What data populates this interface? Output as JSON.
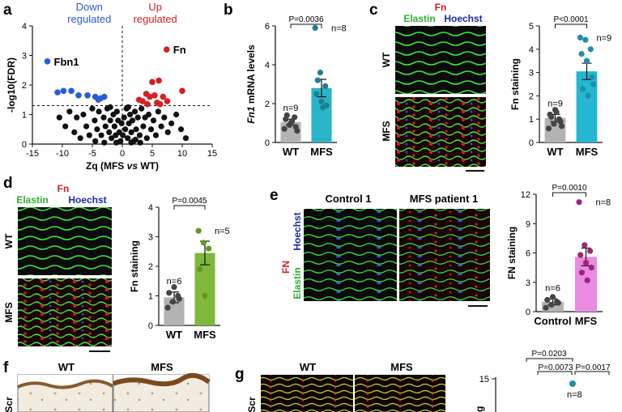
{
  "panels": {
    "a": {
      "letter": "a"
    },
    "b": {
      "letter": "b"
    },
    "c": {
      "letter": "c"
    },
    "d": {
      "letter": "d"
    },
    "e": {
      "letter": "e"
    },
    "f": {
      "letter": "f"
    },
    "g": {
      "letter": "g"
    }
  },
  "micro": {
    "c": {
      "title_fn": "Fn",
      "title_elastin": "Elastin",
      "title_hoechst": "Hoechst",
      "row1": "WT",
      "row2": "MFS"
    },
    "d": {
      "title_fn": "Fn",
      "title_elastin": "Elastin",
      "title_hoechst": "Hoechst",
      "row1": "WT",
      "row2": "MFS"
    },
    "e": {
      "col1": "Control 1",
      "col2": "MFS patient 1",
      "side_fn": "FN",
      "side_elastin": "Elastin",
      "side_hoechst": "Hoechst"
    },
    "f": {
      "col1": "WT",
      "col2": "MFS",
      "side": "Scr"
    },
    "g": {
      "col1": "WT",
      "col2": "MFS",
      "side": "Scr"
    }
  },
  "colors": {
    "down": "#2a5bd7",
    "up": "#d42020",
    "ns": "#111111",
    "wt_bar": "#b3b3b3",
    "mfs_b": "#2ab4c8",
    "mfs_c": "#23b7d1",
    "mfs_d": "#7fb83a",
    "mfs_e": "#e98be0",
    "dot_b": "#1e7f94",
    "dot_c": "#1f8fab",
    "dot_d": "#5e9a22",
    "dot_e": "#9c2482",
    "dot_wt": "#444444"
  },
  "chart_data": [
    {
      "id": "a",
      "type": "scatter",
      "title_down": "Down\nregulated",
      "title_up": "Up\nregulated",
      "xlabel": "Zq (MFS vs WT)",
      "ylabel": "-log10(FDR)",
      "xlim": [
        -15,
        15
      ],
      "ylim": [
        0,
        4
      ],
      "xticks": [
        -15,
        -10,
        -5,
        0,
        5,
        10,
        15
      ],
      "yticks": [
        0,
        1,
        2,
        3,
        4
      ],
      "threshold_y": 1.3,
      "annotations": [
        {
          "text": "Fbn1",
          "x": -12.5,
          "y": 2.8
        },
        {
          "text": "Fn",
          "x": 7.4,
          "y": 3.2
        }
      ],
      "down_points": [
        [
          -12.5,
          2.8
        ],
        [
          -10.8,
          1.75
        ],
        [
          -9.8,
          1.8
        ],
        [
          -8.5,
          1.8
        ],
        [
          -7.3,
          1.65
        ],
        [
          -5.8,
          1.65
        ],
        [
          -4.5,
          1.6
        ],
        [
          -4.0,
          1.5
        ],
        [
          -3.6,
          1.55
        ],
        [
          -3.0,
          1.6
        ]
      ],
      "up_points": [
        [
          7.4,
          3.2
        ],
        [
          10.0,
          1.8
        ],
        [
          5.0,
          2.1
        ],
        [
          6.1,
          2.15
        ],
        [
          4.0,
          1.7
        ],
        [
          4.6,
          1.6
        ],
        [
          5.4,
          1.65
        ],
        [
          6.8,
          1.6
        ],
        [
          3.4,
          1.45
        ],
        [
          4.2,
          1.35
        ],
        [
          5.8,
          1.4
        ],
        [
          6.3,
          1.35
        ],
        [
          2.8,
          1.5
        ],
        [
          7.5,
          1.45
        ]
      ],
      "ns_points": [
        [
          -10.5,
          0.9
        ],
        [
          -9.5,
          0.6
        ],
        [
          -8.8,
          1.1
        ],
        [
          -8.0,
          0.4
        ],
        [
          -7.6,
          0.9
        ],
        [
          -7.0,
          0.2
        ],
        [
          -6.5,
          1.0
        ],
        [
          -6.0,
          0.6
        ],
        [
          -5.5,
          0.3
        ],
        [
          -5.0,
          1.2
        ],
        [
          -4.6,
          0.8
        ],
        [
          -4.2,
          0.5
        ],
        [
          -3.9,
          1.1
        ],
        [
          -3.5,
          0.3
        ],
        [
          -3.1,
          0.9
        ],
        [
          -2.8,
          0.6
        ],
        [
          -2.5,
          1.2
        ],
        [
          -2.2,
          0.4
        ],
        [
          -2.0,
          0.8
        ],
        [
          -1.8,
          0.2
        ],
        [
          -1.5,
          1.0
        ],
        [
          -1.3,
          0.6
        ],
        [
          -1.1,
          0.3
        ],
        [
          -0.9,
          1.1
        ],
        [
          -0.7,
          0.8
        ],
        [
          -0.5,
          0.4
        ],
        [
          -0.3,
          0.1
        ],
        [
          -0.1,
          0.7
        ],
        [
          0.1,
          0.3
        ],
        [
          0.3,
          0.9
        ],
        [
          0.5,
          0.5
        ],
        [
          0.7,
          1.2
        ],
        [
          0.9,
          0.2
        ],
        [
          1.1,
          0.7
        ],
        [
          1.3,
          1.0
        ],
        [
          1.5,
          0.4
        ],
        [
          1.7,
          0.8
        ],
        [
          1.9,
          0.1
        ],
        [
          2.1,
          1.1
        ],
        [
          2.3,
          0.5
        ],
        [
          2.6,
          0.9
        ],
        [
          2.9,
          0.3
        ],
        [
          3.2,
          1.2
        ],
        [
          3.5,
          0.6
        ],
        [
          3.8,
          0.9
        ],
        [
          4.1,
          0.2
        ],
        [
          4.4,
          1.0
        ],
        [
          4.8,
          0.5
        ],
        [
          5.2,
          0.8
        ],
        [
          5.6,
          0.3
        ],
        [
          6.0,
          1.1
        ],
        [
          6.5,
          0.6
        ],
        [
          7.0,
          0.9
        ],
        [
          7.6,
          0.4
        ],
        [
          8.2,
          0.7
        ],
        [
          9.0,
          1.0
        ],
        [
          9.8,
          0.5
        ],
        [
          10.6,
          0.2
        ],
        [
          -2.0,
          1.25
        ],
        [
          1.0,
          1.25
        ],
        [
          -3.0,
          0.05
        ],
        [
          3.0,
          0.05
        ],
        [
          -1.0,
          0.05
        ],
        [
          1.5,
          0.05
        ],
        [
          -4.5,
          0.1
        ],
        [
          2.2,
          0.15
        ]
      ]
    },
    {
      "id": "b",
      "type": "bar",
      "categories": [
        "WT",
        "MFS"
      ],
      "values": [
        1.05,
        2.8
      ],
      "errors": [
        0.15,
        0.45
      ],
      "ylabel": "Fn1 mRNA levels",
      "ylabel_italic": "Fn1",
      "ylabel_rest": " mRNA levels",
      "ylim": [
        0,
        6
      ],
      "yticks": [
        0,
        2,
        4,
        6
      ],
      "n_labels": [
        "n=9",
        "n=8"
      ],
      "pvalue": "P=0.0036",
      "points": [
        [
          0.7,
          0.9,
          1.3,
          1.2,
          1.0,
          0.8,
          1.4,
          1.1,
          0.6
        ],
        [
          5.9,
          3.6,
          2.9,
          2.5,
          2.1,
          1.9,
          3.2,
          1.8
        ]
      ]
    },
    {
      "id": "c",
      "type": "bar",
      "categories": [
        "WT",
        "MFS"
      ],
      "values": [
        1.05,
        3.05
      ],
      "errors": [
        0.15,
        0.35
      ],
      "ylabel": "Fn staining",
      "ylim": [
        0,
        5
      ],
      "yticks": [
        0,
        1,
        2,
        3,
        4,
        5
      ],
      "n_labels": [
        "n=9",
        "n=9"
      ],
      "pvalue": "P<0.0001",
      "points": [
        [
          0.6,
          0.8,
          1.0,
          1.2,
          1.4,
          0.9,
          1.1,
          1.3,
          0.7
        ],
        [
          4.5,
          4.4,
          4.0,
          3.8,
          3.5,
          2.8,
          2.3,
          2.0,
          2.5
        ]
      ]
    },
    {
      "id": "d",
      "type": "bar",
      "categories": [
        "WT",
        "MFS"
      ],
      "values": [
        0.95,
        2.45
      ],
      "errors": [
        0.18,
        0.4
      ],
      "ylabel": "Fn staining",
      "ylim": [
        0,
        4
      ],
      "yticks": [
        0,
        1,
        2,
        3,
        4
      ],
      "n_labels": [
        "n=6",
        "n=5"
      ],
      "pvalue": "P=0.0045",
      "points": [
        [
          0.6,
          0.8,
          1.0,
          1.1,
          1.3,
          0.9
        ],
        [
          3.2,
          2.8,
          2.6,
          1.9,
          1.0
        ]
      ]
    },
    {
      "id": "e",
      "type": "bar",
      "categories": [
        "Control",
        "MFS"
      ],
      "values": [
        1.0,
        5.6
      ],
      "errors": [
        0.3,
        0.9
      ],
      "ylabel": "FN staining",
      "ylim": [
        0,
        12
      ],
      "yticks": [
        0,
        3,
        6,
        9,
        12
      ],
      "n_labels": [
        "n=6",
        "n=8"
      ],
      "pvalue": "P=0.0010",
      "points": [
        [
          0.4,
          0.7,
          1.0,
          1.2,
          1.5,
          0.9
        ],
        [
          11.2,
          6.8,
          6.2,
          5.8,
          5.0,
          4.5,
          4.0,
          3.2
        ]
      ]
    },
    {
      "id": "g_partial",
      "type": "bar",
      "ytick_top": "15",
      "n_label": "n=8",
      "pvalues": [
        "P=0.0203",
        "P=0.0073",
        "P=0.0017"
      ]
    }
  ]
}
